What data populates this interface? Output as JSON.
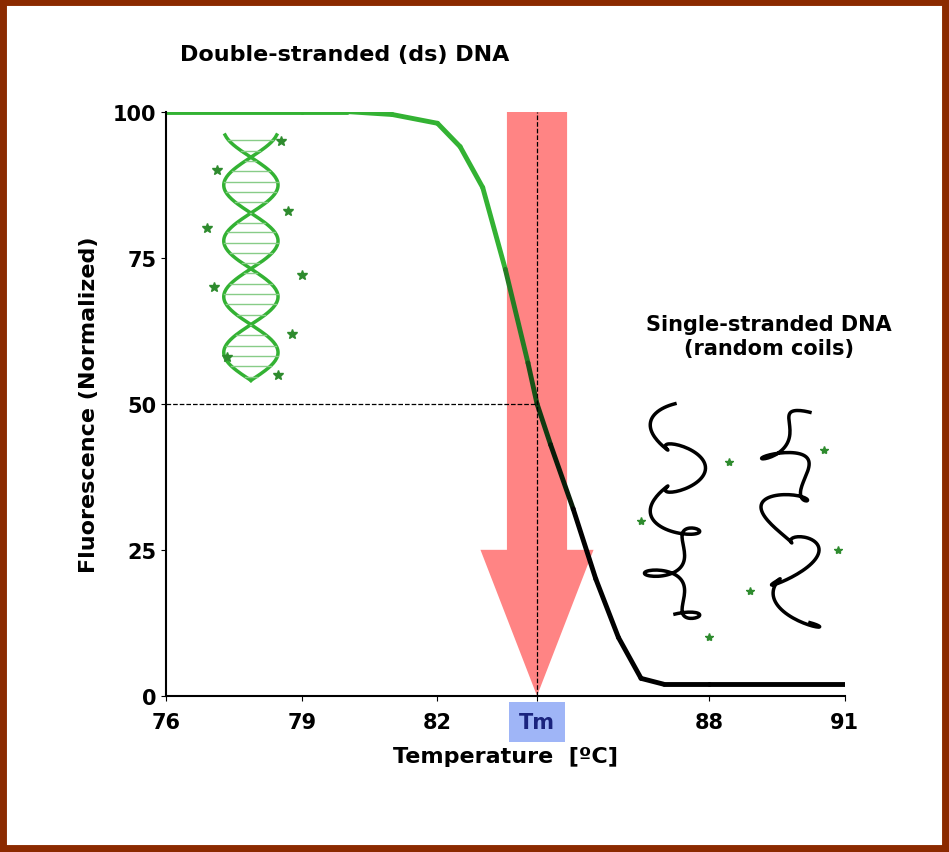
{
  "chart_data": {
    "type": "line",
    "title": "Double-stranded (ds) DNA",
    "annotations": [
      "Single-stranded DNA\n(random coils)"
    ],
    "x_label": "Temperature  [ºC]",
    "y_label": "Fluorescence (Normalized)",
    "x": [
      76,
      79,
      80,
      81,
      82,
      82.5,
      83,
      83.5,
      84,
      84.2,
      84.5,
      85,
      85.5,
      86,
      86.5,
      87,
      88,
      91
    ],
    "values": [
      100,
      100,
      100,
      99.5,
      98,
      94,
      87,
      73,
      57,
      50,
      43,
      32,
      20,
      10,
      3,
      2,
      2,
      2
    ],
    "color": "#33b233",
    "xlim": [
      76,
      91
    ],
    "ylim": [
      0,
      100
    ],
    "xticks": [
      76,
      79,
      82,
      {
        "value": 84.2,
        "label": "Tm"
      },
      88,
      91
    ],
    "yticks": [
      0,
      25,
      50,
      75,
      100
    ],
    "grid": false,
    "reference_lines": {
      "x": 84.2,
      "y": 50
    }
  }
}
